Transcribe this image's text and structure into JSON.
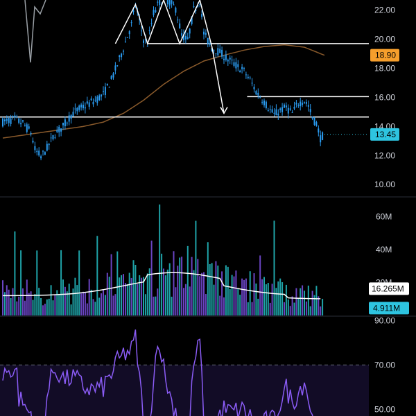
{
  "colors": {
    "background": "#000000",
    "candle": "#2a9bf0",
    "wick": "#2a9bf0",
    "ma_line": "#8a5a2b",
    "horizontal_level": "#ffffff",
    "arrow": "#ffffff",
    "last_price": "#2ec4e0",
    "ma_badge": "#f59e2c",
    "volume_teal": "#1fa3a8",
    "volume_purple": "#6a44c2",
    "volume_ma": "#ffffff",
    "rsi_line": "#8b5cf6",
    "rsi_band": "#120c26",
    "divider": "#2a2e39",
    "text": "#d1d4dc"
  },
  "chart_data": [
    {
      "type": "candlestick",
      "panel": "price",
      "y_ticks": [
        "22.00",
        "20.00",
        "18.00",
        "16.00",
        "14.00",
        "12.00",
        "10.00"
      ],
      "y_tick_values": [
        22,
        20,
        18,
        16,
        14,
        12,
        10
      ],
      "ylim": [
        9.2,
        22.7
      ],
      "bar_count": 160,
      "close_path": [
        [
          0,
          14.3
        ],
        [
          6,
          14.5
        ],
        [
          10,
          14.2
        ],
        [
          14,
          13.6
        ],
        [
          16,
          12.4
        ],
        [
          19,
          11.9
        ],
        [
          22,
          12.5
        ],
        [
          26,
          13.5
        ],
        [
          30,
          14.0
        ],
        [
          34,
          14.8
        ],
        [
          38,
          15.2
        ],
        [
          42,
          15.5
        ],
        [
          46,
          15.8
        ],
        [
          50,
          16.2
        ],
        [
          54,
          17.2
        ],
        [
          58,
          18.6
        ],
        [
          61,
          19.8
        ],
        [
          64,
          21.0
        ],
        [
          66,
          22.4
        ],
        [
          70,
          20.0
        ],
        [
          72,
          19.7
        ],
        [
          75,
          21.8
        ],
        [
          78,
          22.6
        ],
        [
          82,
          22.7
        ],
        [
          86,
          22.1
        ],
        [
          89,
          20.3
        ],
        [
          92,
          19.9
        ],
        [
          95,
          22.0
        ],
        [
          98,
          22.7
        ],
        [
          100,
          20.4
        ],
        [
          104,
          19.4
        ],
        [
          108,
          19.1
        ],
        [
          112,
          18.6
        ],
        [
          116,
          18.2
        ],
        [
          120,
          17.8
        ],
        [
          123,
          17.2
        ],
        [
          126,
          16.4
        ],
        [
          129,
          15.9
        ],
        [
          132,
          15.3
        ],
        [
          135,
          14.8
        ],
        [
          138,
          15.1
        ],
        [
          141,
          15.3
        ],
        [
          144,
          14.9
        ],
        [
          147,
          15.6
        ],
        [
          150,
          15.8
        ],
        [
          152,
          15.4
        ],
        [
          154,
          14.6
        ],
        [
          156,
          14.2
        ],
        [
          158,
          13.2
        ],
        [
          160,
          13.45
        ]
      ],
      "moving_average": [
        [
          0,
          13.2
        ],
        [
          10,
          13.4
        ],
        [
          20,
          13.6
        ],
        [
          30,
          13.8
        ],
        [
          40,
          14.0
        ],
        [
          50,
          14.3
        ],
        [
          60,
          14.9
        ],
        [
          70,
          15.8
        ],
        [
          80,
          16.9
        ],
        [
          90,
          17.8
        ],
        [
          100,
          18.5
        ],
        [
          110,
          18.9
        ],
        [
          120,
          19.25
        ],
        [
          130,
          19.5
        ],
        [
          140,
          19.62
        ],
        [
          150,
          19.45
        ],
        [
          160,
          18.9
        ]
      ],
      "horizontal_levels": [
        {
          "price": 19.7,
          "x_from": 0.4,
          "x_to": 1.0
        },
        {
          "price": 16.05,
          "x_from": 0.67,
          "x_to": 1.0
        },
        {
          "price": 14.65,
          "x_from": 0.0,
          "x_to": 1.0
        }
      ],
      "annotation_path": {
        "zigzag": [
          [
            56,
            19.7
          ],
          [
            66,
            22.4
          ],
          [
            72,
            19.7
          ],
          [
            80,
            22.7
          ],
          [
            88,
            19.7
          ],
          [
            98,
            22.7
          ],
          [
            104,
            19.5
          ],
          [
            110,
            14.9
          ]
        ],
        "arrow_end": [
          110,
          14.9
        ]
      },
      "badges": [
        {
          "label": "18.90",
          "price": 18.9,
          "kind": "ma"
        },
        {
          "label": "13.45",
          "price": 13.45,
          "kind": "last"
        }
      ],
      "last_price": 13.45
    },
    {
      "type": "bar",
      "panel": "volume",
      "y_ticks": [
        "60M",
        "40M",
        "20M"
      ],
      "y_tick_values": [
        60,
        40,
        20
      ],
      "ylim": [
        0,
        72
      ],
      "units": "M",
      "bar_count": 160,
      "volume_ma_label": "16.265M",
      "last_volume_label": "4.911M",
      "volume_ma_last": 16.265,
      "last_volume": 4.911
    },
    {
      "type": "line",
      "panel": "rsi",
      "y_ticks": [
        "90.00",
        "70.00",
        "50.00"
      ],
      "y_tick_values": [
        90,
        70,
        50
      ],
      "ylim": [
        47,
        92
      ],
      "band": [
        30,
        70
      ],
      "bar_count": 160
    }
  ]
}
